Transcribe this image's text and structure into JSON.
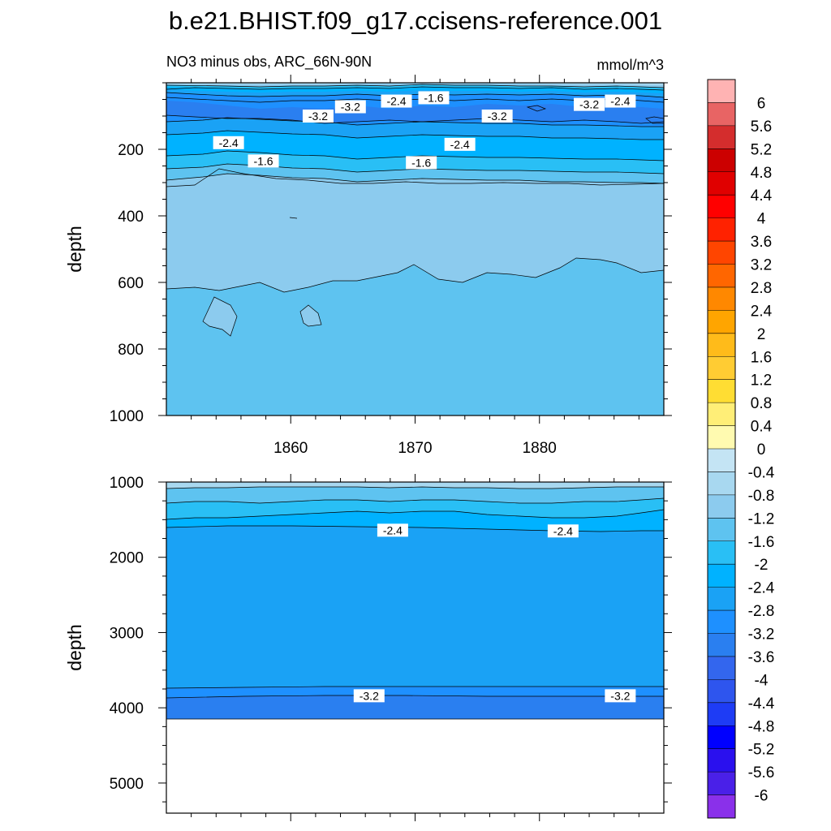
{
  "title": "b.e21.BHIST.f09_g17.ccisens-reference.001",
  "subtitle_left": "NO3 minus obs, ARC_66N-90N",
  "subtitle_right": "mmol/m^3",
  "chart_data": [
    {
      "type": "heatmap",
      "panel": "upper",
      "ylabel": "depth",
      "ylim": [
        0,
        1000
      ],
      "y_reversed": true,
      "y_ticks": [
        200,
        400,
        600,
        800,
        1000
      ],
      "xlim": [
        1850,
        1890
      ],
      "x_ticks": [
        1860,
        1870,
        1880
      ],
      "contour_labels": [
        {
          "text": "-1.6",
          "x": 1871.5,
          "depth": 45
        },
        {
          "text": "-2.4",
          "x": 1868.5,
          "depth": 55
        },
        {
          "text": "-2.4",
          "x": 1886.5,
          "depth": 55
        },
        {
          "text": "-3.2",
          "x": 1864.8,
          "depth": 72
        },
        {
          "text": "-3.2",
          "x": 1884.0,
          "depth": 65
        },
        {
          "text": "-3.2",
          "x": 1862.2,
          "depth": 100
        },
        {
          "text": "-3.2",
          "x": 1876.6,
          "depth": 100
        },
        {
          "text": "-2.4",
          "x": 1855.0,
          "depth": 180
        },
        {
          "text": "-2.4",
          "x": 1873.6,
          "depth": 185
        },
        {
          "text": "-1.6",
          "x": 1857.8,
          "depth": 235
        },
        {
          "text": "-1.6",
          "x": 1870.5,
          "depth": 240
        }
      ]
    },
    {
      "type": "heatmap",
      "panel": "lower",
      "ylabel": "depth",
      "ylim": [
        1000,
        5400
      ],
      "y_reversed": true,
      "y_ticks": [
        1000,
        2000,
        3000,
        4000,
        5000
      ],
      "xlim": [
        1850,
        1890
      ],
      "bottom_depth": 4125,
      "contour_labels": [
        {
          "text": "-2.4",
          "x": 1868.2,
          "depth": 1640
        },
        {
          "text": "-2.4",
          "x": 1881.9,
          "depth": 1650
        },
        {
          "text": "-3.2",
          "x": 1866.3,
          "depth": 3840
        },
        {
          "text": "-3.2",
          "x": 1886.5,
          "depth": 3840
        }
      ]
    }
  ],
  "colorbar": {
    "labels": [
      "6",
      "5.6",
      "5.2",
      "4.8",
      "4.4",
      "4",
      "3.6",
      "3.2",
      "2.8",
      "2.4",
      "2",
      "1.6",
      "1.2",
      "0.8",
      "0.4",
      "0",
      "-0.4",
      "-0.8",
      "-1.2",
      "-1.6",
      "-2",
      "-2.4",
      "-2.8",
      "-3.2",
      "-3.6",
      "-4",
      "-4.4",
      "-4.8",
      "-5.2",
      "-5.6",
      "-6"
    ],
    "colors": [
      "#FFB3B3",
      "#E86464",
      "#D42D2D",
      "#CC0000",
      "#E00000",
      "#FF0000",
      "#FF2200",
      "#FF4500",
      "#FF6600",
      "#FF8800",
      "#FFA500",
      "#FFBB1A",
      "#FFCC33",
      "#FFDD33",
      "#FFEE77",
      "#FFFAB0",
      "#C4E4F4",
      "#A8D8F0",
      "#8CCBEE",
      "#5EC3F0",
      "#29BFF5",
      "#00B2FF",
      "#1AA2F5",
      "#1E90FF",
      "#2A7FF0",
      "#3366EE",
      "#2E55EE",
      "#1E3CF5",
      "#0000FF",
      "#2A10EE",
      "#4A20E8",
      "#8A30EA"
    ]
  },
  "fill_colors": {
    "c_m04": "#C4E4F4",
    "c_m08": "#A8D8F0",
    "c_m12": "#8CCBEE",
    "c_m16": "#5EC3F0",
    "c_m20": "#29BFF5",
    "c_m24": "#00B2FF",
    "c_m28": "#1AA2F5",
    "c_m32": "#1E90FF",
    "c_m36": "#2A7FF0"
  }
}
